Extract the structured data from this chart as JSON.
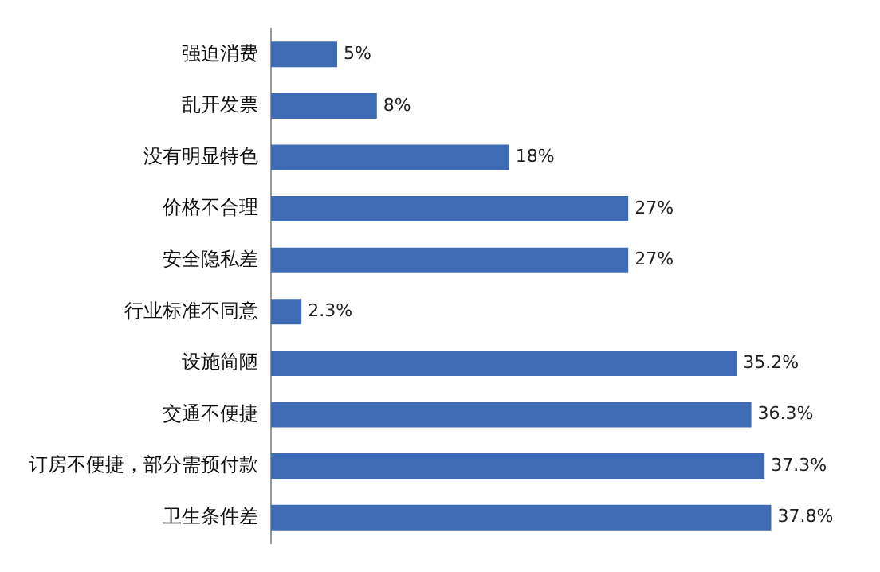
{
  "chart_data": {
    "type": "bar",
    "orientation": "horizontal",
    "categories": [
      "强迫消费",
      "乱开发票",
      "没有明显特色",
      "价格不合理",
      "安全隐私差",
      "行业标准不同意",
      "设施简陋",
      "交通不便捷",
      "订房不便捷，部分需预付款",
      "卫生条件差"
    ],
    "values": [
      5,
      8,
      18,
      27,
      27,
      2.3,
      35.2,
      36.3,
      37.3,
      37.8
    ],
    "value_labels": [
      "5%",
      "8%",
      "18%",
      "27%",
      "27%",
      "2.3%",
      "35.2%",
      "36.3%",
      "37.3%",
      "37.8%"
    ],
    "color": "#3e6cb4",
    "tick_labels": "y"
  }
}
